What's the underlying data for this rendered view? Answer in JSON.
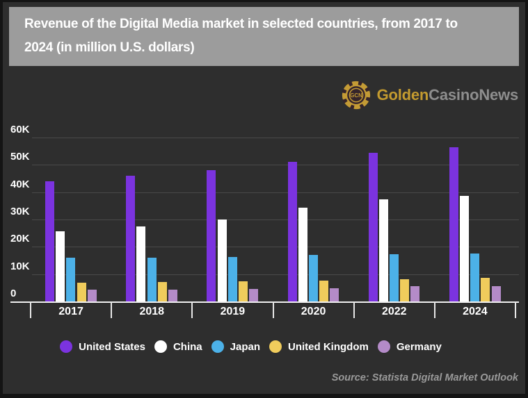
{
  "header": {
    "title_lines": [
      "Revenue of the Digital Media market in selected countries, from 2017 to",
      "2024 (in million U.S. dollars)"
    ]
  },
  "brand": {
    "chip_text": "GCN",
    "name_gold": "Golden",
    "name_gray": "CasinoNews"
  },
  "footer": {
    "source": "Source: Statista Digital Market Outlook"
  },
  "colors": {
    "background": "#2E2E2E",
    "frame": "#141414",
    "title_box": "#9C9C9C",
    "grid": "#4A4A4A",
    "axis": "#F0F0F0",
    "gold": "#C49B2F",
    "brand_gray": "#8E8E8E",
    "source_text": "#9A9A9A"
  },
  "chart_data": {
    "type": "bar",
    "title": "Revenue of the Digital Media market in selected countries, from 2017 to 2024 (in million U.S. dollars)",
    "xlabel": "",
    "ylabel": "million U.S. dollars",
    "categories": [
      "2017",
      "2018",
      "2019",
      "2020",
      "2022",
      "2024"
    ],
    "series": [
      {
        "name": "United States",
        "color": "#7B33DF",
        "values": [
          44000,
          46000,
          48000,
          51000,
          54500,
          56500
        ]
      },
      {
        "name": "China",
        "color": "#FFFFFF",
        "values": [
          25700,
          27500,
          30000,
          34300,
          37400,
          38700
        ]
      },
      {
        "name": "Japan",
        "color": "#4CB1E8",
        "values": [
          16000,
          16100,
          16300,
          17000,
          17300,
          17600
        ]
      },
      {
        "name": "United Kingdom",
        "color": "#F0CC5C",
        "values": [
          6900,
          7100,
          7300,
          7600,
          8200,
          8700
        ]
      },
      {
        "name": "Germany",
        "color": "#B48BC8",
        "values": [
          4300,
          4400,
          4600,
          4900,
          5500,
          5700
        ]
      }
    ],
    "ylim": [
      0,
      60000
    ],
    "yticks": [
      "0",
      "10K",
      "20K",
      "30K",
      "40K",
      "50K",
      "60K"
    ],
    "grid": true,
    "legend_position": "bottom"
  }
}
